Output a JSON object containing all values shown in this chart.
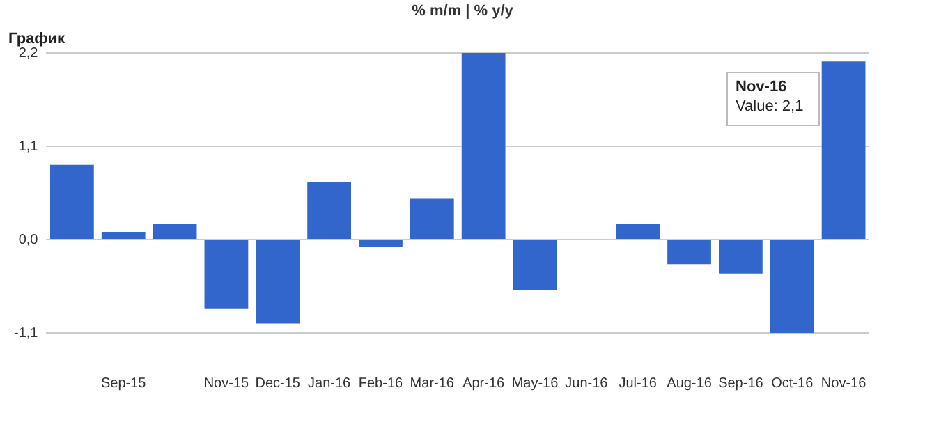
{
  "chart_data": {
    "type": "bar",
    "title": "График",
    "subtitle": "% m/m | % y/y",
    "categories": [
      null,
      "Sep-15",
      null,
      "Nov-15",
      "Dec-15",
      "Jan-16",
      "Feb-16",
      "Mar-16",
      "Apr-16",
      "May-16",
      "Jun-16",
      "Jul-16",
      "Aug-16",
      "Sep-16",
      "Oct-16",
      "Nov-16"
    ],
    "values": [
      0.88,
      0.09,
      0.18,
      -0.81,
      -0.99,
      0.68,
      -0.09,
      0.48,
      2.2,
      -0.6,
      0,
      0.18,
      -0.29,
      -0.4,
      -1.1,
      2.1
    ],
    "color": "#3366cc",
    "ylim": [
      -1.1,
      2.2
    ],
    "yticks": [
      {
        "value": -1.1,
        "label": "-1,1"
      },
      {
        "value": 0,
        "label": "0,0"
      },
      {
        "value": 1.1,
        "label": "1,1"
      },
      {
        "value": 2.2,
        "label": "2,2"
      }
    ],
    "grid": "y",
    "legend": false,
    "annotations": [
      "Nov-16",
      "Value: 2,1"
    ]
  }
}
